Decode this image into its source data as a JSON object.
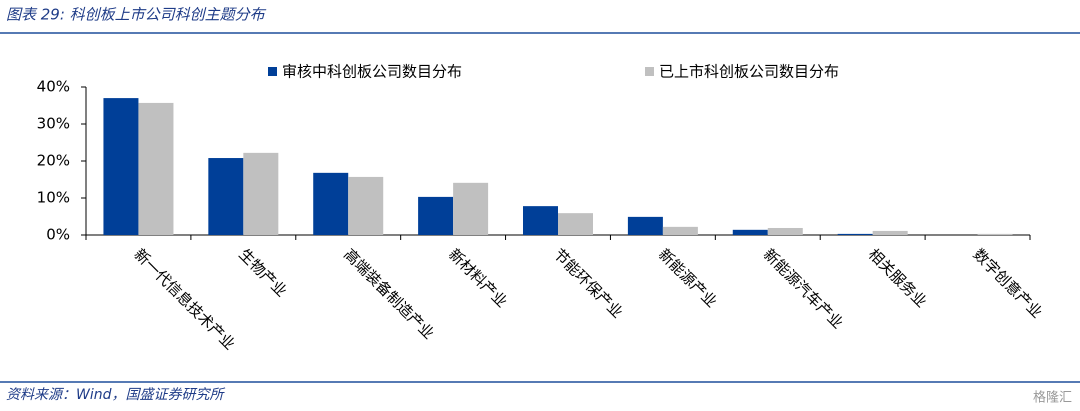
{
  "chart_data": {
    "type": "bar",
    "title": "图表 29:  科创板上市公司科创主题分布",
    "source": "资料来源：Wind，国盛证券研究所",
    "watermark": "格隆汇",
    "categories": [
      "新一代信息技术产业",
      "生物产业",
      "高端装备制造产业",
      "新材料产业",
      "节能环保产业",
      "新能源产业",
      "新能源汽车产业",
      "相关服务业",
      "数字创意产业"
    ],
    "series": [
      {
        "name": "审核中科创板公司数目分布",
        "color": "#003f98",
        "values": [
          37.0,
          20.8,
          16.8,
          10.3,
          7.8,
          4.9,
          1.4,
          0.3,
          0
        ]
      },
      {
        "name": "已上市科创板公司数目分布",
        "color": "#c0c0c0",
        "values": [
          35.7,
          22.2,
          15.7,
          14.1,
          5.9,
          2.2,
          1.9,
          1.1,
          0.3
        ]
      }
    ],
    "ylim": [
      0,
      40
    ],
    "yticks": [
      {
        "value": 0,
        "label": "0%"
      },
      {
        "value": 10,
        "label": "10%"
      },
      {
        "value": 20,
        "label": "20%"
      },
      {
        "value": 30,
        "label": "30%"
      },
      {
        "value": 40,
        "label": "40%"
      }
    ],
    "grid": false
  }
}
